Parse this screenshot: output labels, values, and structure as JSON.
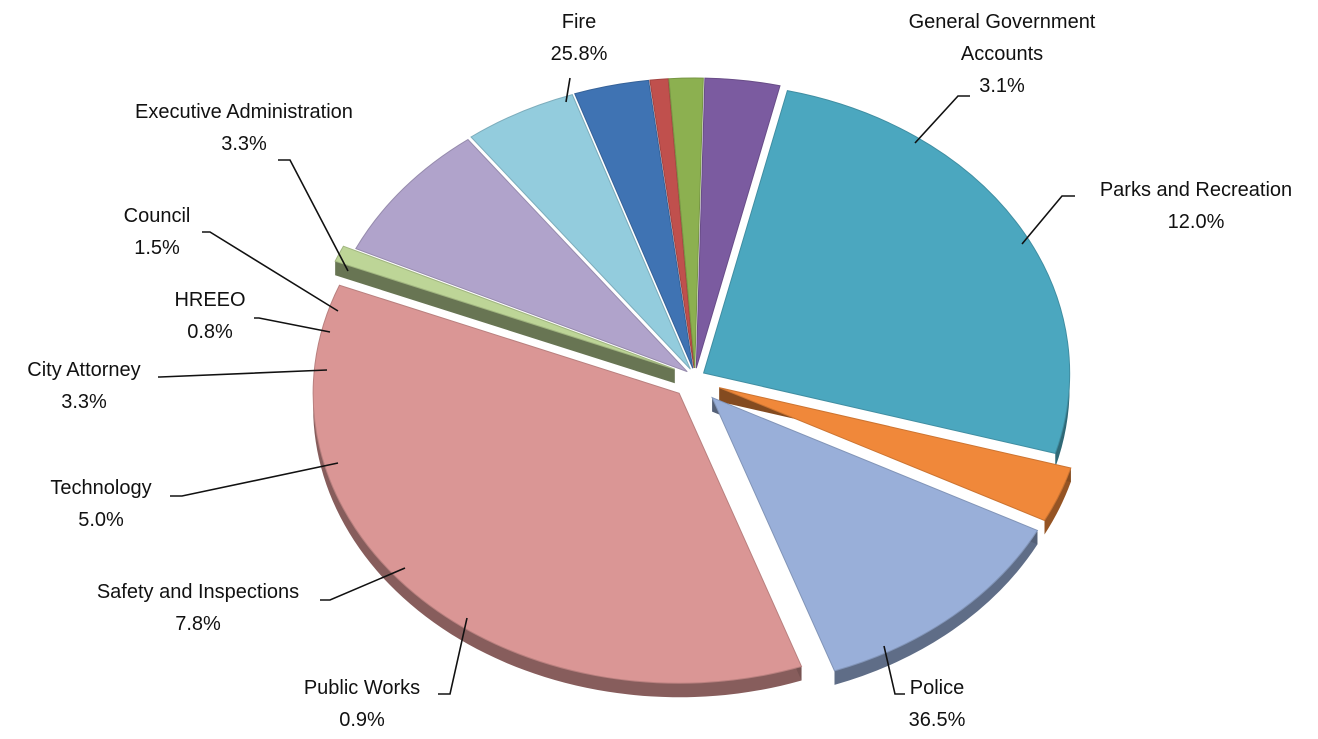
{
  "chart_data": {
    "type": "pie",
    "title": "",
    "slices": [
      {
        "label": "Fire",
        "label_lines": [
          "Fire"
        ],
        "percent_text": "25.8%",
        "value": 25.8,
        "color": "#4BA7BF"
      },
      {
        "label": "General Government Accounts",
        "label_lines": [
          "General Government",
          "Accounts"
        ],
        "percent_text": "3.1%",
        "value": 3.1,
        "color": "#F0883A"
      },
      {
        "label": "Parks and Recreation",
        "label_lines": [
          "Parks and Recreation"
        ],
        "percent_text": "12.0%",
        "value": 12.0,
        "color": "#99AFD9"
      },
      {
        "label": "Police",
        "label_lines": [
          "Police"
        ],
        "percent_text": "36.5%",
        "value": 36.5,
        "color": "#DA9695"
      },
      {
        "label": "Public Works",
        "label_lines": [
          "Public Works"
        ],
        "percent_text": "0.9%",
        "value": 0.9,
        "color": "#BDD597"
      },
      {
        "label": "Safety and Inspections",
        "label_lines": [
          "Safety and Inspections"
        ],
        "percent_text": "7.8%",
        "value": 7.8,
        "color": "#B0A3CB"
      },
      {
        "label": "Technology",
        "label_lines": [
          "Technology"
        ],
        "percent_text": "5.0%",
        "value": 5.0,
        "color": "#93CCDD"
      },
      {
        "label": "City Attorney",
        "label_lines": [
          "City Attorney"
        ],
        "percent_text": "3.3%",
        "value": 3.3,
        "color": "#3F73B3"
      },
      {
        "label": "HREEO",
        "label_lines": [
          "HREEO"
        ],
        "percent_text": "0.8%",
        "value": 0.8,
        "color": "#C0504D"
      },
      {
        "label": "Council",
        "label_lines": [
          "Council"
        ],
        "percent_text": "1.5%",
        "value": 1.5,
        "color": "#8CB050"
      },
      {
        "label": "Executive Administration",
        "label_lines": [
          "Executive Administration"
        ],
        "percent_text": "3.3%",
        "value": 3.3,
        "color": "#7B5BA0"
      }
    ]
  }
}
